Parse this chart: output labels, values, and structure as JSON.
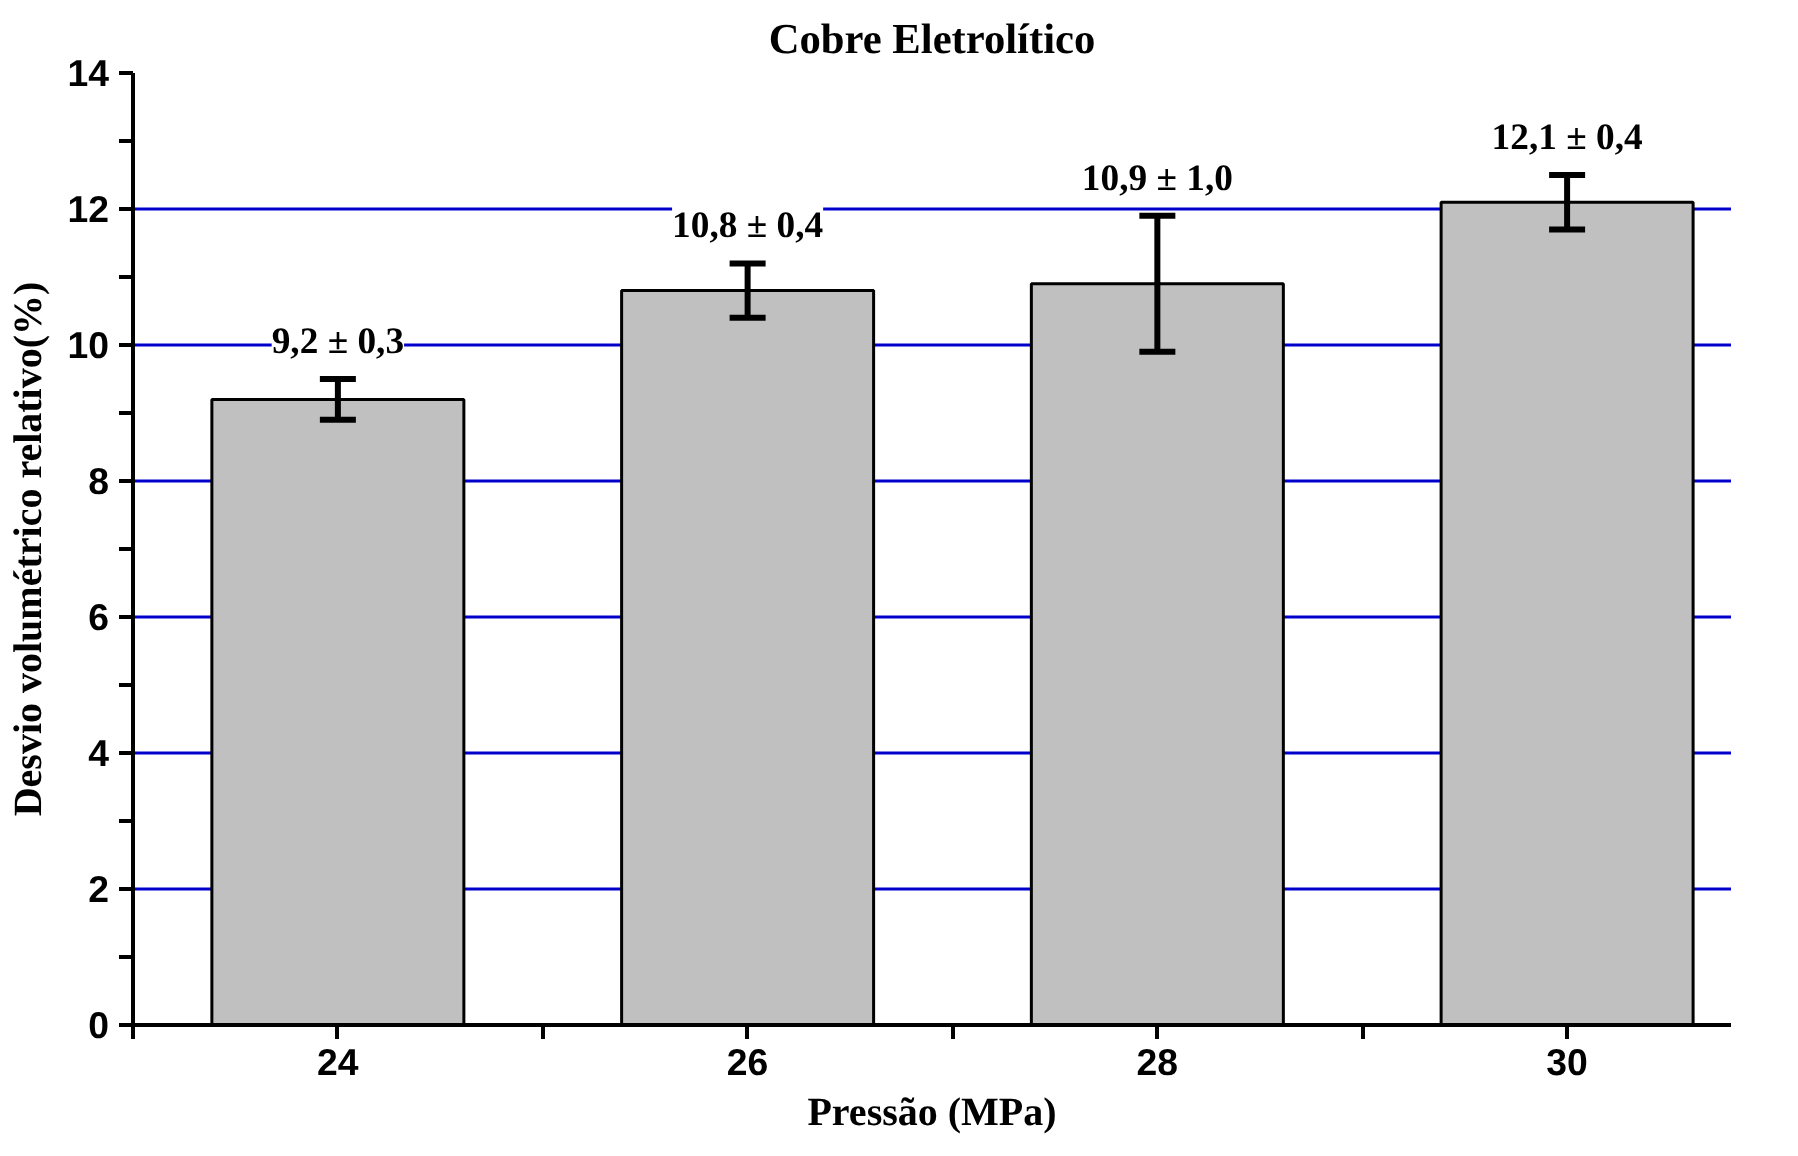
{
  "chart_data": {
    "type": "bar",
    "title": "Cobre Eletrolítico",
    "xlabel": "Pressão (MPa)",
    "ylabel": "Desvio volumétrico relativo(%)",
    "x": [
      24,
      26,
      28,
      30
    ],
    "values": [
      9.2,
      10.8,
      10.9,
      12.1
    ],
    "errors": [
      0.3,
      0.4,
      1.0,
      0.4
    ],
    "value_labels": [
      "9,2 ± 0,3",
      "10,8 ± 0,4",
      "10,9 ± 1,0",
      "12,1 ± 0,4"
    ],
    "color": "#c0c0c0",
    "xlim": [
      23,
      30.8
    ],
    "xticks": [
      {
        "value": 23,
        "label": null
      },
      24,
      {
        "value": 25,
        "label": null
      },
      26,
      {
        "value": 27,
        "label": null
      },
      28,
      {
        "value": 29,
        "label": null
      },
      30
    ],
    "ylim": [
      0,
      14
    ],
    "yticks": [
      0,
      {
        "value": 1,
        "label": null
      },
      2,
      {
        "value": 3,
        "label": null
      },
      4,
      {
        "value": 5,
        "label": null
      },
      6,
      {
        "value": 7,
        "label": null
      },
      8,
      {
        "value": 9,
        "label": null
      },
      10,
      {
        "value": 11,
        "label": null
      },
      12,
      {
        "value": 13,
        "label": null
      },
      14
    ],
    "grid": "y"
  }
}
